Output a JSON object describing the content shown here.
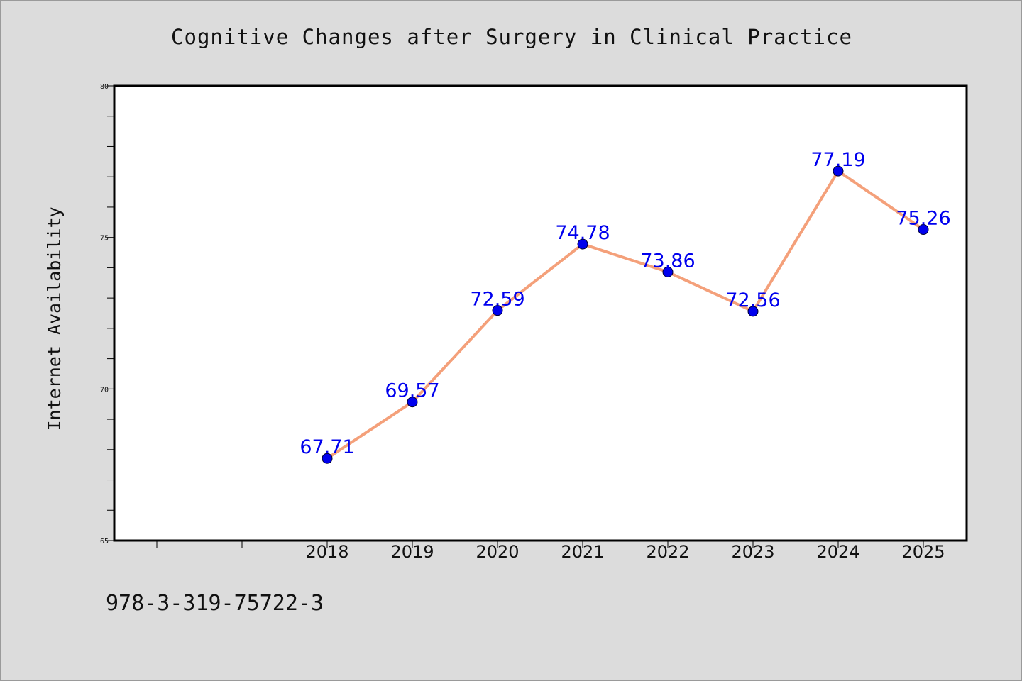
{
  "chart_data": {
    "type": "line",
    "title": "Cognitive Changes after Surgery in Clinical Practice",
    "xlabel": "",
    "ylabel": "Internet Availability",
    "categories": [
      "2018",
      "2019",
      "2020",
      "2021",
      "2022",
      "2023",
      "2024",
      "2025"
    ],
    "series": [
      {
        "values": [
          67.71,
          69.57,
          72.59,
          74.78,
          73.86,
          72.56,
          77.19,
          75.26
        ]
      }
    ],
    "value_labels": [
      "67.71",
      "69.57",
      "72.59",
      "74.78",
      "73.86",
      "72.56",
      "77.19",
      "75.26"
    ],
    "ylim": [
      65,
      80
    ],
    "yticks": [
      "65",
      "70",
      "75",
      "80"
    ],
    "grid": false,
    "legend": "none",
    "colors": {
      "line": "#f4a07a",
      "marker": "#0000ee",
      "labels": "#0000ee",
      "background": "#dcdcdc",
      "plot_background": "#ffffff"
    }
  },
  "footer_text": "978-3-319-75722-3"
}
